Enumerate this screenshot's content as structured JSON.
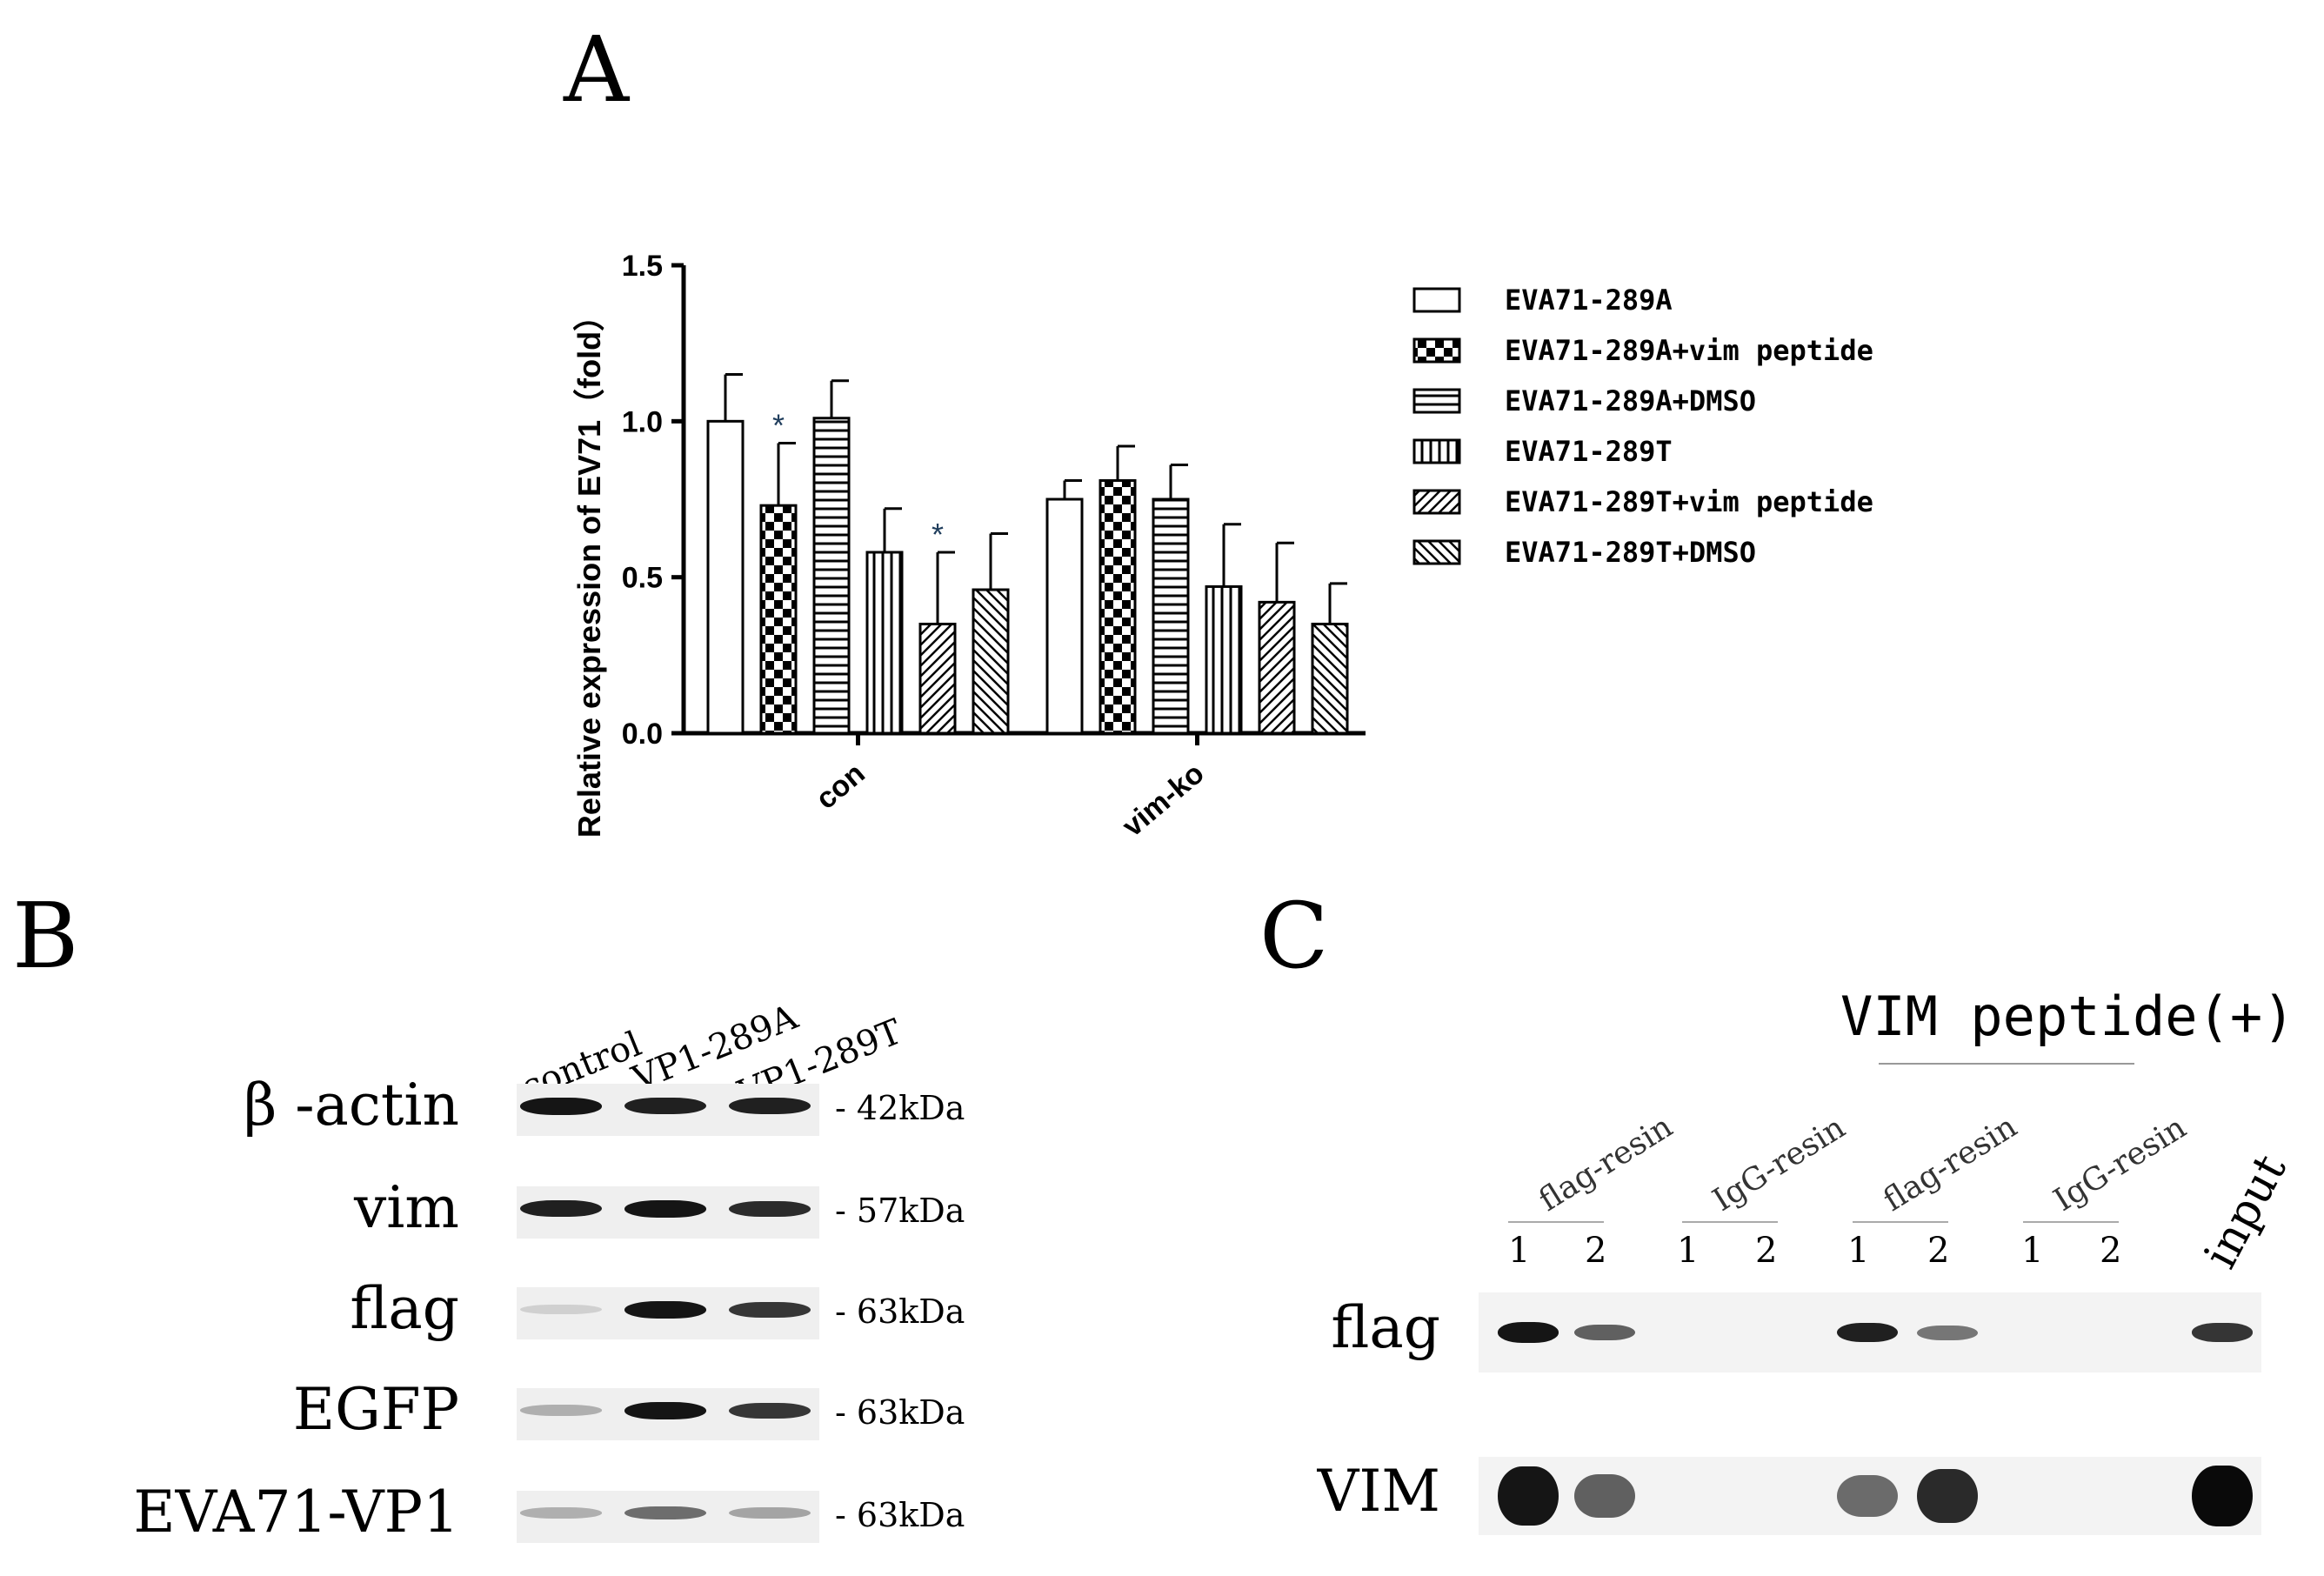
{
  "panels": {
    "a": "A",
    "b": "B",
    "c": "C"
  },
  "chart_data": {
    "type": "bar",
    "title": "",
    "xlabel": "",
    "ylabel": "Relative expression of EV71（fold）",
    "ylim": [
      0,
      1.5
    ],
    "yticks": [
      "0.0",
      "0.5",
      "1.0",
      "1.5"
    ],
    "categories": [
      "con",
      "vim-ko"
    ],
    "legend_position": "right",
    "series": [
      {
        "name": "EVA71-289A",
        "pattern": "open",
        "values": [
          1.0,
          0.75
        ],
        "errors": [
          0.15,
          0.06
        ],
        "sig": [
          "",
          ""
        ]
      },
      {
        "name": "EVA71-289A+vim peptide",
        "pattern": "checker",
        "values": [
          0.73,
          0.81
        ],
        "errors": [
          0.2,
          0.11
        ],
        "sig": [
          "*",
          ""
        ]
      },
      {
        "name": "EVA71-289A+DMSO",
        "pattern": "horizontal",
        "values": [
          1.01,
          0.75
        ],
        "errors": [
          0.12,
          0.11
        ],
        "sig": [
          "",
          ""
        ]
      },
      {
        "name": "EVA71-289T",
        "pattern": "vertical",
        "values": [
          0.58,
          0.47
        ],
        "errors": [
          0.14,
          0.2
        ],
        "sig": [
          "",
          ""
        ]
      },
      {
        "name": "EVA71-289T+vim peptide",
        "pattern": "diag-up",
        "values": [
          0.35,
          0.42
        ],
        "errors": [
          0.23,
          0.19
        ],
        "sig": [
          "*",
          ""
        ]
      },
      {
        "name": "EVA71-289T+DMSO",
        "pattern": "diag-down",
        "values": [
          0.46,
          0.35
        ],
        "errors": [
          0.18,
          0.13
        ],
        "sig": [
          "",
          ""
        ]
      }
    ]
  },
  "blot_b": {
    "lanes": [
      "control",
      "VP1-289A",
      "VP1-289T"
    ],
    "rows": [
      {
        "label": "β -actin",
        "kda": "- 42kDa",
        "intensity": [
          0.95,
          0.9,
          0.9
        ]
      },
      {
        "label": "vim",
        "kda": "- 57kDa",
        "intensity": [
          0.9,
          0.95,
          0.85
        ]
      },
      {
        "label": "flag",
        "kda": "- 63kDa",
        "intensity": [
          0.1,
          0.95,
          0.8
        ]
      },
      {
        "label": "EGFP",
        "kda": "- 63kDa",
        "intensity": [
          0.25,
          0.95,
          0.8
        ]
      },
      {
        "label": "EVA71-VP1",
        "kda": "- 63kDa",
        "intensity": [
          0.25,
          0.55,
          0.3
        ]
      }
    ]
  },
  "blot_c": {
    "header": "VIM peptide(+)",
    "groups": [
      "flag-resin",
      "IgG-resin",
      "flag-resin",
      "IgG-resin"
    ],
    "lane_numbers": [
      "1",
      "2",
      "1",
      "2",
      "1",
      "2",
      "1",
      "2"
    ],
    "input_label": "input",
    "rows": [
      {
        "label": "flag",
        "intensity": [
          0.95,
          0.6,
          0.0,
          0.0,
          0.9,
          0.5,
          0.0,
          0.0,
          0.8
        ]
      },
      {
        "label": "VIM",
        "intensity": [
          0.95,
          0.6,
          0.0,
          0.0,
          0.55,
          0.85,
          0.0,
          0.0,
          1.0
        ]
      }
    ]
  }
}
